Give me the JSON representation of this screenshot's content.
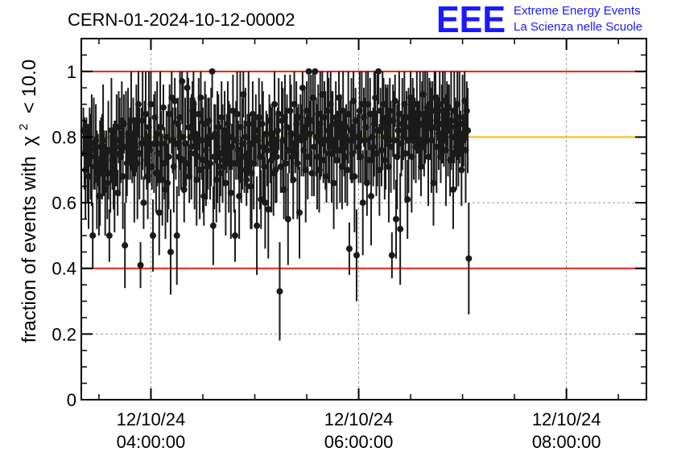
{
  "title": "CERN-01-2024-10-12-00002",
  "logo": {
    "mark": "EEE",
    "line1": "Extreme Energy Events",
    "line2": "La Scienza nelle Scuole",
    "color": "#1a1aff"
  },
  "chart_data": {
    "type": "scatter",
    "title": "CERN-01-2024-10-12-00002",
    "ylabel_prefix": "fraction of events with",
    "ylabel_chi": "χ",
    "ylabel_sup": "2",
    "ylabel_suffix": "< 10.0",
    "xlabel": "",
    "ylim": [
      0,
      1.1
    ],
    "xlim_hours": [
      3.33,
      8.77
    ],
    "x_ticks": [
      {
        "date": "12/10/24",
        "time": "04:00:00",
        "hour": 4
      },
      {
        "date": "12/10/24",
        "time": "06:00:00",
        "hour": 6
      },
      {
        "date": "12/10/24",
        "time": "08:00:00",
        "hour": 8
      }
    ],
    "y_ticks": [
      {
        "value": 0,
        "label": "0"
      },
      {
        "value": 0.2,
        "label": "0.2"
      },
      {
        "value": 0.4,
        "label": "0.4"
      },
      {
        "value": 0.6,
        "label": "0.6"
      },
      {
        "value": 0.8,
        "label": "0.8"
      },
      {
        "value": 1.0,
        "label": "1"
      }
    ],
    "reference_lines": [
      {
        "y": 1.0,
        "color": "#e8201c"
      },
      {
        "y": 0.8,
        "color": "#f5b800"
      },
      {
        "y": 0.4,
        "color": "#e8201c"
      }
    ],
    "grid": true,
    "marker_color": "#1a1a1a",
    "series": [
      {
        "x_start_hour": 3.35,
        "x_step_hours": 0.01,
        "y": [
          0.82,
          0.75,
          0.7,
          0.78,
          0.72,
          0.68,
          0.8,
          0.74,
          0.76,
          0.5,
          0.78,
          0.71,
          0.79,
          0.67,
          0.73,
          0.62,
          0.69,
          0.77,
          0.74,
          0.79,
          0.72,
          0.64,
          0.75,
          0.66,
          0.76,
          0.5,
          0.69,
          0.82,
          0.73,
          0.71,
          0.68,
          0.75,
          0.79,
          0.63,
          0.83,
          0.77,
          0.74,
          0.85,
          0.68,
          0.84,
          0.47,
          0.77,
          0.72,
          0.81,
          0.79,
          0.78,
          0.85,
          0.74,
          0.8,
          0.7,
          0.77,
          0.83,
          0.72,
          0.9,
          0.75,
          0.41,
          0.78,
          0.85,
          0.6,
          0.79,
          0.87,
          0.73,
          0.68,
          0.83,
          0.76,
          0.9,
          0.71,
          0.5,
          0.78,
          0.86,
          0.69,
          0.81,
          0.75,
          0.57,
          0.83,
          0.78,
          0.67,
          0.89,
          0.72,
          0.64,
          0.8,
          0.66,
          0.74,
          0.87,
          0.45,
          0.92,
          0.79,
          0.71,
          0.91,
          0.78,
          0.5,
          0.84,
          0.74,
          0.86,
          0.73,
          0.97,
          0.8,
          0.64,
          0.78,
          0.72,
          0.95,
          0.83,
          0.68,
          0.8,
          0.77,
          0.88,
          0.9,
          0.75,
          0.81,
          0.67,
          0.74,
          0.87,
          0.7,
          0.92,
          0.79,
          0.73,
          0.62,
          0.84,
          0.76,
          0.71,
          0.78,
          0.85,
          0.72,
          0.8,
          1.0,
          0.53,
          0.74,
          0.81,
          0.67,
          0.77,
          0.83,
          0.71,
          0.69,
          0.86,
          0.75,
          0.73,
          0.82,
          0.66,
          0.78,
          0.84,
          0.74,
          0.8,
          0.63,
          0.77,
          0.88,
          0.72,
          0.5,
          0.79,
          0.87,
          0.76,
          0.62,
          0.83,
          0.7,
          0.78,
          0.93,
          0.74,
          0.8,
          0.67,
          0.75,
          0.84,
          0.78,
          0.65,
          0.69,
          0.87,
          0.72,
          0.8,
          0.82,
          0.53,
          0.79,
          0.86,
          0.74,
          0.61,
          0.84,
          0.77,
          0.71,
          0.6,
          0.81,
          0.76,
          0.58,
          0.85,
          0.78,
          0.73,
          0.81,
          0.69,
          0.9,
          0.7,
          0.74,
          0.82,
          0.87,
          0.33,
          0.71,
          0.85,
          0.79,
          0.64,
          0.86,
          0.72,
          0.83,
          0.55,
          0.76,
          0.88,
          0.81,
          0.74,
          0.67,
          0.9,
          0.78,
          0.84,
          0.72,
          0.8,
          0.57,
          0.86,
          0.79,
          0.95,
          0.76,
          0.83,
          0.7,
          0.88,
          0.74,
          1.0,
          0.81,
          0.85,
          0.69,
          0.92,
          0.77,
          1.0,
          0.8,
          0.74,
          0.87,
          0.7,
          0.84,
          0.78,
          0.93,
          0.73,
          0.86,
          0.79,
          0.68,
          0.88,
          0.82,
          0.75,
          0.9,
          0.77,
          0.84,
          0.66,
          0.79,
          0.86,
          0.73,
          0.8,
          0.92,
          0.76,
          0.84,
          0.71,
          0.88,
          0.78,
          0.74,
          0.83,
          0.7,
          0.87,
          0.46,
          0.79,
          0.82,
          0.75,
          0.91,
          0.68,
          0.85,
          0.44,
          0.8,
          0.77,
          0.88,
          0.74,
          0.9,
          0.6,
          0.86,
          0.79,
          0.83,
          0.66,
          0.9,
          0.73,
          0.87,
          0.62,
          0.8,
          0.77,
          0.84,
          0.92,
          0.75,
          0.82,
          1.0,
          0.7,
          0.88,
          0.76,
          0.85,
          0.9,
          0.73,
          0.8,
          0.86,
          0.83,
          0.71,
          0.88,
          0.77,
          0.44,
          0.85,
          0.79,
          0.91,
          0.55,
          0.74,
          0.82,
          0.87,
          0.52,
          0.78,
          0.84,
          0.8,
          0.9,
          0.75,
          0.86,
          0.61,
          0.79,
          0.83,
          0.92,
          0.74,
          0.88,
          0.81,
          0.85,
          0.77,
          0.9,
          0.83,
          0.79,
          0.87,
          0.71,
          0.84,
          0.93,
          0.78,
          0.86,
          0.82,
          0.89,
          0.74,
          0.9,
          0.85,
          0.79,
          0.88,
          0.66,
          0.83,
          0.92,
          0.77,
          0.86,
          0.81,
          0.9,
          0.74,
          0.84,
          0.88,
          0.8,
          0.91,
          0.76,
          0.87,
          0.82,
          0.89,
          0.73,
          0.85,
          0.8,
          0.64,
          0.88,
          0.83,
          0.77,
          0.9,
          0.75,
          0.86,
          0.81,
          0.7,
          0.84,
          0.79,
          0.91,
          0.76,
          0.88,
          0.82,
          0.43
        ]
      }
    ]
  }
}
